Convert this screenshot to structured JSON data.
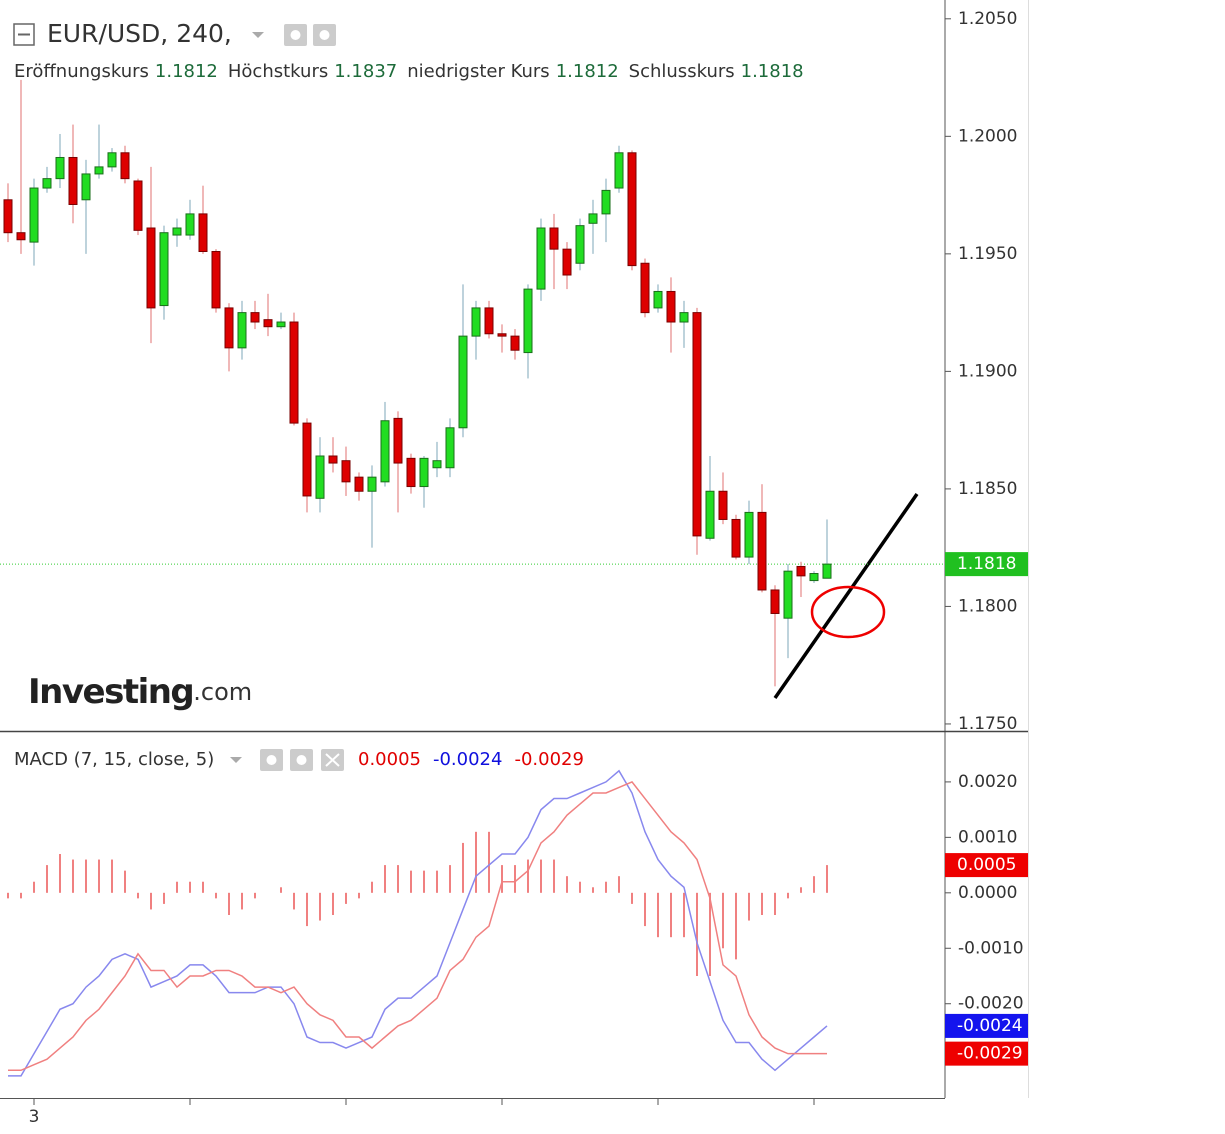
{
  "chart_data": [
    {
      "type": "candlestick",
      "title": "EUR/USD, 240,",
      "legend": [
        {
          "label": "Eröffnungskurs",
          "value": 1.1812
        },
        {
          "label": "Höchstkurs",
          "value": 1.1837
        },
        {
          "label": "niedrigster Kurs",
          "value": 1.1812
        },
        {
          "label": "Schlusskurs",
          "value": 1.1818
        }
      ],
      "watermark": [
        "Investing",
        ".com"
      ],
      "up_color": "#22dd22",
      "down_color": "#dd0000",
      "categories": [
        null,
        null,
        "3",
        null,
        null,
        null,
        null,
        null,
        null,
        null,
        null,
        null,
        null,
        null,
        null,
        null,
        null,
        null,
        null,
        null,
        null,
        null,
        null,
        null,
        null,
        null,
        null,
        null,
        null,
        null,
        null,
        null,
        null,
        null,
        null,
        null,
        null,
        null,
        null,
        null,
        null,
        null,
        null,
        null,
        null,
        null,
        null,
        null,
        null,
        null,
        null,
        null,
        null,
        null,
        null,
        null,
        null,
        null,
        null,
        null,
        null,
        null,
        null,
        null
      ],
      "open": [
        1.1973,
        1.1959,
        1.1955,
        1.1978,
        1.1982,
        1.1991,
        1.1973,
        1.1984,
        1.1987,
        1.1993,
        1.1981,
        1.1961,
        1.1928,
        1.1958,
        1.1958,
        1.1967,
        1.1951,
        1.1927,
        1.191,
        1.1925,
        1.1922,
        1.1919,
        1.1921,
        1.1878,
        1.1846,
        1.1864,
        1.1862,
        1.1855,
        1.1849,
        1.1853,
        1.188,
        1.1863,
        1.1851,
        1.1859,
        1.1859,
        1.1876,
        1.1915,
        1.1927,
        1.1916,
        1.1915,
        1.1908,
        1.1935,
        1.1961,
        1.1952,
        1.1946,
        1.1963,
        1.1967,
        1.1978,
        1.1993,
        1.1946,
        1.1927,
        1.1934,
        1.1921,
        1.1925,
        1.1829,
        1.1849,
        1.1837,
        1.1821,
        1.184,
        1.1807,
        1.1795,
        1.1817,
        1.1811,
        1.1812
      ],
      "high": [
        1.198,
        1.2024,
        1.1982,
        1.1987,
        1.2001,
        1.2005,
        1.199,
        1.2005,
        1.1995,
        1.1996,
        1.1982,
        1.1987,
        1.1962,
        1.1965,
        1.1973,
        1.1979,
        1.1952,
        1.1929,
        1.193,
        1.193,
        1.1933,
        1.1925,
        1.1925,
        1.188,
        1.1872,
        1.1872,
        1.1868,
        1.1857,
        1.186,
        1.1887,
        1.1883,
        1.1865,
        1.1864,
        1.187,
        1.188,
        1.1937,
        1.193,
        1.193,
        1.192,
        1.1918,
        1.1937,
        1.1965,
        1.1967,
        1.1955,
        1.1965,
        1.1973,
        1.1982,
        1.1996,
        1.1994,
        1.1948,
        1.1937,
        1.194,
        1.193,
        1.1927,
        1.1864,
        1.1857,
        1.1839,
        1.1845,
        1.1852,
        1.1809,
        1.1818,
        1.1819,
        1.1815,
        1.1837
      ],
      "low": [
        1.1955,
        1.195,
        1.1945,
        1.1976,
        1.1978,
        1.1963,
        1.195,
        1.1982,
        1.1985,
        1.198,
        1.1958,
        1.1912,
        1.1922,
        1.1953,
        1.1956,
        1.195,
        1.1925,
        1.19,
        1.1905,
        1.1918,
        1.1915,
        1.1918,
        1.1877,
        1.184,
        1.184,
        1.1857,
        1.1847,
        1.1845,
        1.1825,
        1.1851,
        1.184,
        1.1848,
        1.1842,
        1.1855,
        1.1855,
        1.1872,
        1.1905,
        1.1914,
        1.1908,
        1.1905,
        1.1897,
        1.193,
        1.1935,
        1.1935,
        1.1943,
        1.195,
        1.1955,
        1.1976,
        1.1943,
        1.1923,
        1.1925,
        1.1908,
        1.191,
        1.1822,
        1.1828,
        1.1835,
        1.182,
        1.1818,
        1.1806,
        1.1766,
        1.1778,
        1.1804,
        1.181,
        1.1812
      ],
      "close": [
        1.1959,
        1.1956,
        1.1978,
        1.1982,
        1.1991,
        1.1971,
        1.1984,
        1.1987,
        1.1993,
        1.1982,
        1.196,
        1.1927,
        1.1959,
        1.1961,
        1.1967,
        1.1951,
        1.1927,
        1.191,
        1.1925,
        1.1921,
        1.1919,
        1.1921,
        1.1878,
        1.1847,
        1.1864,
        1.1861,
        1.1853,
        1.1849,
        1.1855,
        1.1879,
        1.1861,
        1.1851,
        1.1863,
        1.1862,
        1.1876,
        1.1915,
        1.1927,
        1.1916,
        1.1915,
        1.1909,
        1.1935,
        1.1961,
        1.1952,
        1.1941,
        1.1962,
        1.1967,
        1.1977,
        1.1993,
        1.1945,
        1.1925,
        1.1934,
        1.1921,
        1.1925,
        1.183,
        1.1849,
        1.1837,
        1.1821,
        1.184,
        1.1807,
        1.1797,
        1.1815,
        1.1813,
        1.1814,
        1.1818
      ],
      "ylim": [
        1.1747,
        1.2058
      ],
      "yticks": [
        {
          "value": 1.175,
          "label": "1.1750"
        },
        {
          "value": 1.18,
          "label": "1.1800"
        },
        {
          "value": 1.185,
          "label": "1.1850"
        },
        {
          "value": 1.19,
          "label": "1.1900"
        },
        {
          "value": 1.195,
          "label": "1.1950"
        },
        {
          "value": 1.2,
          "label": "1.2000"
        },
        {
          "value": 1.205,
          "label": "1.2050"
        }
      ],
      "grid": false
    },
    {
      "type": "macd",
      "title": "MACD (7, 15, close, 5)",
      "series": [
        {
          "style": "histogram",
          "color": "#f08080",
          "label_color": "#e00000",
          "last_value": 0.0005,
          "values": [
            -0.0001,
            -0.0001,
            0.0002,
            0.0005,
            0.0007,
            0.0006,
            0.0006,
            0.0006,
            0.0006,
            0.0004,
            -0.0001,
            -0.0003,
            -0.0002,
            0.0002,
            0.0002,
            0.0002,
            -0.0001,
            -0.0004,
            -0.0003,
            -0.0001,
            0.0,
            0.0001,
            -0.0003,
            -0.0006,
            -0.0005,
            -0.0004,
            -0.0002,
            -0.0001,
            0.0002,
            0.0005,
            0.0005,
            0.0004,
            0.0004,
            0.0004,
            0.0005,
            0.0009,
            0.0011,
            0.0011,
            0.0005,
            0.0005,
            0.0006,
            0.0006,
            0.0006,
            0.0003,
            0.0002,
            0.0001,
            0.0002,
            0.0003,
            -0.0002,
            -0.0006,
            -0.0008,
            -0.0008,
            -0.0008,
            -0.0015,
            -0.0015,
            -0.001,
            -0.0012,
            -0.0005,
            -0.0004,
            -0.0004,
            -0.0001,
            0.0001,
            0.0003,
            0.0005
          ]
        },
        {
          "style": "line",
          "color": "#8888ee",
          "label_color": "#1010dd",
          "last_value": -0.0024,
          "values": [
            -0.0033,
            -0.0033,
            -0.0029,
            -0.0025,
            -0.0021,
            -0.002,
            -0.0017,
            -0.0015,
            -0.0012,
            -0.0011,
            -0.0012,
            -0.0017,
            -0.0016,
            -0.0015,
            -0.0013,
            -0.0013,
            -0.0015,
            -0.0018,
            -0.0018,
            -0.0018,
            -0.0017,
            -0.0017,
            -0.002,
            -0.0026,
            -0.0027,
            -0.0027,
            -0.0028,
            -0.0027,
            -0.0026,
            -0.0021,
            -0.0019,
            -0.0019,
            -0.0017,
            -0.0015,
            -0.0009,
            -0.0003,
            0.0003,
            0.0005,
            0.0007,
            0.0007,
            0.001,
            0.0015,
            0.0017,
            0.0017,
            0.0018,
            0.0019,
            0.002,
            0.0022,
            0.0018,
            0.0011,
            0.0006,
            0.0003,
            0.0001,
            -0.0009,
            -0.0016,
            -0.0023,
            -0.0027,
            -0.0027,
            -0.003,
            -0.0032,
            -0.003,
            -0.0028,
            -0.0026,
            -0.0024
          ]
        },
        {
          "style": "line",
          "color": "#f08080",
          "label_color": "#e00000",
          "last_value": -0.0029,
          "values": [
            -0.0032,
            -0.0032,
            -0.0031,
            -0.003,
            -0.0028,
            -0.0026,
            -0.0023,
            -0.0021,
            -0.0018,
            -0.0015,
            -0.0011,
            -0.0014,
            -0.0014,
            -0.0017,
            -0.0015,
            -0.0015,
            -0.0014,
            -0.0014,
            -0.0015,
            -0.0017,
            -0.0017,
            -0.0018,
            -0.0017,
            -0.002,
            -0.0022,
            -0.0023,
            -0.0026,
            -0.0026,
            -0.0028,
            -0.0026,
            -0.0024,
            -0.0023,
            -0.0021,
            -0.0019,
            -0.0014,
            -0.0012,
            -0.0008,
            -0.0006,
            0.0002,
            0.0002,
            0.0004,
            0.0009,
            0.0011,
            0.0014,
            0.0016,
            0.0018,
            0.0018,
            0.0019,
            0.002,
            0.0017,
            0.0014,
            0.0011,
            0.0009,
            0.0006,
            -0.0001,
            -0.0013,
            -0.0015,
            -0.0022,
            -0.0026,
            -0.0028,
            -0.0029,
            -0.0029,
            -0.0029,
            -0.0029
          ]
        }
      ],
      "ylim": [
        -0.0037,
        0.0029
      ],
      "yticks": [
        {
          "value": -0.002,
          "label": "-0.0020"
        },
        {
          "value": -0.001,
          "label": "-0.0010"
        },
        {
          "value": 0,
          "label": "0.0000"
        },
        {
          "value": 0.001,
          "label": "0.0010"
        },
        {
          "value": 0.002,
          "label": "0.0020"
        }
      ],
      "grid": false
    }
  ]
}
